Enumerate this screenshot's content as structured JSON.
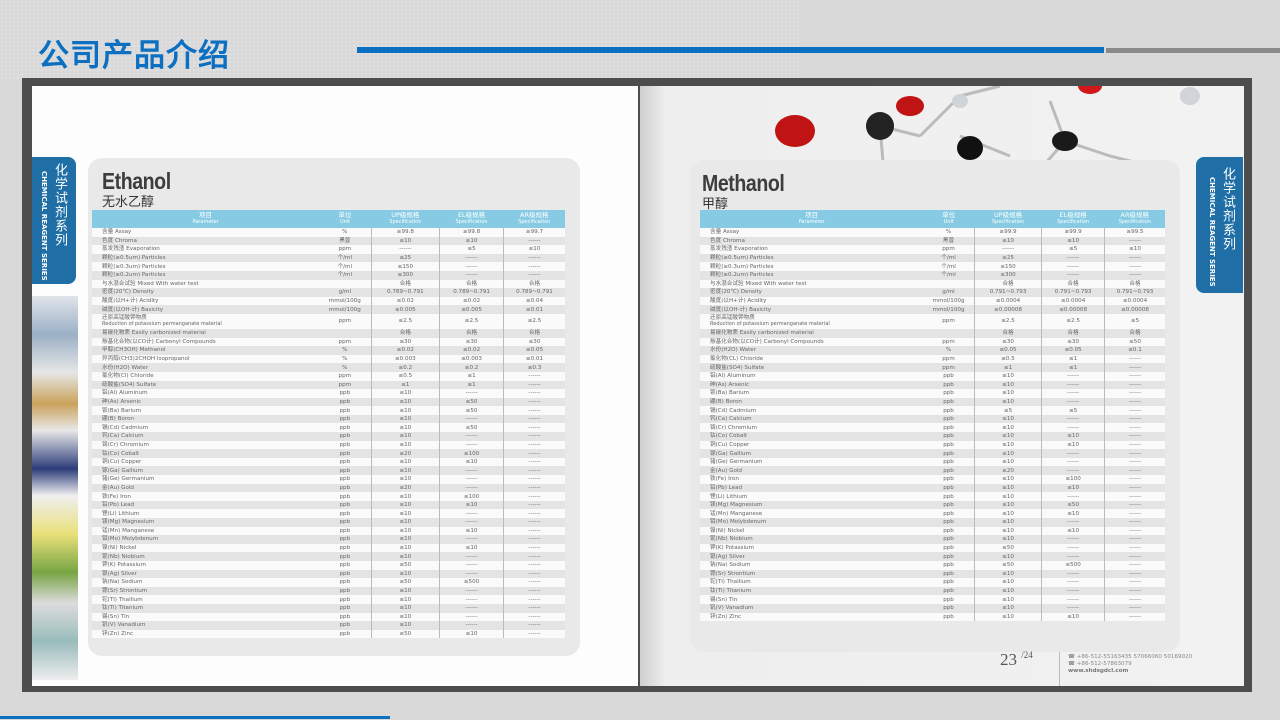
{
  "slide": {
    "title": "公司产品介绍"
  },
  "side_tab": {
    "cn": "化学试剂系列",
    "en": "CHEMICAL REAGENT SERIES"
  },
  "headers": {
    "param_cn": "项目",
    "param_en": "Parameter",
    "unit_cn": "单位",
    "unit_en": "Unit",
    "up_cn": "UP级规格",
    "el_cn": "EL级规格",
    "ar_cn": "AR级规格",
    "spec_en": "Specification"
  },
  "ethanol": {
    "name": "Ethanol",
    "name_cn": "无水乙醇",
    "rows": [
      [
        "含量 Assay",
        "",
        "%",
        "≥99.8",
        "≥99.8",
        "≥99.7"
      ],
      [
        "色度 Chroma",
        "",
        "黑曾",
        "≤10",
        "≤10",
        "------"
      ],
      [
        "蒸发残渣 Evaporation",
        "",
        "ppm",
        "------",
        "≤5",
        "≤10"
      ],
      [
        "颗粒(≥0.5um) Particles",
        "",
        "个/ml",
        "≤25",
        "------",
        "------"
      ],
      [
        "颗粒(≥0.3um) Particles",
        "",
        "个/ml",
        "≤150",
        "------",
        "------"
      ],
      [
        "颗粒(≥0.2um) Particles",
        "",
        "个/ml",
        "≤300",
        "------",
        "------"
      ],
      [
        "与水混合试验 Mixed With water test",
        "",
        "",
        "合格",
        "合格",
        "合格"
      ],
      [
        "密度(20℃)    Density",
        "",
        "g/ml",
        "0.789~0.791",
        "0.789~0.791",
        "0.789~0.791"
      ],
      [
        "酸度(以H+计)   Acidity",
        "",
        "mmol/100g",
        "≤0.02",
        "≤0.02",
        "≤0.04"
      ],
      [
        "碱度(以OH-计) Basicity",
        "",
        "mmol/100g",
        "≤0.005",
        "≤0.005",
        "≤0.01"
      ],
      [
        "还原高锰酸钾物质",
        "Reduction of potassium permanganate material",
        "ppm",
        "≤2.5",
        "≤2.5",
        "≤2.5"
      ],
      [
        "易碳化物质 Easily carbonized material",
        "",
        "",
        "合格",
        "合格",
        "合格"
      ],
      [
        "羰基化合物(以CO计) Carbonyl Compounds",
        "",
        "ppm",
        "≤30",
        "≤30",
        "≤30"
      ],
      [
        "甲醇(CH3OH)    Methanol",
        "",
        "%",
        "≤0.02",
        "≤0.02",
        "≤0.05"
      ],
      [
        "异丙醇(CH3)2CHOH Isopropanol",
        "",
        "%",
        "≤0.003",
        "≤0.003",
        "≤0.01"
      ],
      [
        "水份(H2O)      Water",
        "",
        "%",
        "≤0.2",
        "≤0.2",
        "≤0.3"
      ],
      [
        "氯化物(Cl)     Chloride",
        "",
        "ppm",
        "≤0.5",
        "≤1",
        "------"
      ],
      [
        "硫酸盐(SO4)    Sulfate",
        "",
        "ppm",
        "≤1",
        "≤1",
        "------"
      ],
      [
        "铝(Al)    Aluminum",
        "",
        "ppb",
        "≤10",
        "------",
        "------"
      ],
      [
        "砷(As)    Arsenic",
        "",
        "ppb",
        "≤10",
        "≤50",
        "------"
      ],
      [
        "钡(Ba)    Barium",
        "",
        "ppb",
        "≤10",
        "≤50",
        "------"
      ],
      [
        "硼(B)     Boron",
        "",
        "ppb",
        "≤10",
        "------",
        "------"
      ],
      [
        "镉(Cd)    Cadmium",
        "",
        "ppb",
        "≤10",
        "≤50",
        "------"
      ],
      [
        "钙(Ca)    Calcium",
        "",
        "ppb",
        "≤10",
        "------",
        "------"
      ],
      [
        "铬(Cr)    Chromium",
        "",
        "ppb",
        "≤10",
        "------",
        "------"
      ],
      [
        "钴(Co)    Cobalt",
        "",
        "ppb",
        "≤20",
        "≤100",
        "------"
      ],
      [
        "铜(Cu)    Copper",
        "",
        "ppb",
        "≤10",
        "≤10",
        "------"
      ],
      [
        "镓(Ga)    Gallium",
        "",
        "ppb",
        "≤10",
        "------",
        "------"
      ],
      [
        "锗(Ge)    Germanium",
        "",
        "ppb",
        "≤10",
        "------",
        "------"
      ],
      [
        "金(Au)    Gold",
        "",
        "ppb",
        "≤20",
        "------",
        "------"
      ],
      [
        "铁(Fe)    Iron",
        "",
        "ppb",
        "≤10",
        "≤100",
        "------"
      ],
      [
        "铅(Pb)    Lead",
        "",
        "ppb",
        "≤10",
        "≤10",
        "------"
      ],
      [
        "锂(Li)    Lithium",
        "",
        "ppb",
        "≤10",
        "------",
        "------"
      ],
      [
        "镁(Mg)    Magnesium",
        "",
        "ppb",
        "≤10",
        "------",
        "------"
      ],
      [
        "锰(Mn)    Manganese",
        "",
        "ppb",
        "≤10",
        "≤10",
        "------"
      ],
      [
        "钼(Mo)    Molybdenum",
        "",
        "ppb",
        "≤10",
        "------",
        "------"
      ],
      [
        "镍(Ni)    Nickel",
        "",
        "ppb",
        "≤10",
        "≤10",
        "------"
      ],
      [
        "铌(Nb)    Niobium",
        "",
        "ppb",
        "≤10",
        "------",
        "------"
      ],
      [
        "钾(K)     Potassium",
        "",
        "ppb",
        "≤50",
        "------",
        "------"
      ],
      [
        "银(Ag)    Silver",
        "",
        "ppb",
        "≤10",
        "------",
        "------"
      ],
      [
        "钠(Na)    Sodium",
        "",
        "ppb",
        "≤50",
        "≤500",
        "------"
      ],
      [
        "锶(Sr)    Strontium",
        "",
        "ppb",
        "≤10",
        "------",
        "------"
      ],
      [
        "铊(Tl)    Thallium",
        "",
        "ppb",
        "≤10",
        "------",
        "------"
      ],
      [
        "钛(Ti)    Titanium",
        "",
        "ppb",
        "≤10",
        "------",
        "------"
      ],
      [
        "锡(Sn)    Tin",
        "",
        "ppb",
        "≤10",
        "------",
        "------"
      ],
      [
        "钒(V)     Vanadium",
        "",
        "ppb",
        "≤10",
        "------",
        "------"
      ],
      [
        "锌(Zn)    Zinc",
        "",
        "ppb",
        "≤50",
        "≤10",
        "------"
      ]
    ]
  },
  "methanol": {
    "name": "Methanol",
    "name_cn": "甲醇",
    "rows": [
      [
        "含量 Assay",
        "",
        "%",
        "≥99.9",
        "≥99.9",
        "≥99.5"
      ],
      [
        "色度 Chroma",
        "",
        "黑曾",
        "≤10",
        "≤10",
        "------"
      ],
      [
        "蒸发残渣 Evaporation",
        "",
        "ppm",
        "------",
        "≤5",
        "≤10"
      ],
      [
        "颗粒(≥0.5um) Particles",
        "",
        "个/ml",
        "≤25",
        "------",
        "------"
      ],
      [
        "颗粒(≥0.3um) Particles",
        "",
        "个/ml",
        "≤150",
        "------",
        "------"
      ],
      [
        "颗粒(≥0.2um) Particles",
        "",
        "个/ml",
        "≤300",
        "------",
        "------"
      ],
      [
        "与水混合试验 Mixed With water test",
        "",
        "",
        "合格",
        "合格",
        "合格"
      ],
      [
        "密度(20℃)    Density",
        "",
        "g/ml",
        "0.791~0.793",
        "0.791~0.793",
        "0.791~0.793"
      ],
      [
        "酸度(以H+计)   Acidity",
        "",
        "mmol/100g",
        "≤0.0004",
        "≤0.0004",
        "≤0.0004"
      ],
      [
        "碱度(以OH-计) Basicity",
        "",
        "mmol/100g",
        "≤0.00008",
        "≤0.00008",
        "≤0.00008"
      ],
      [
        "还原高锰酸钾物质",
        "Reduction of potassium permanganate material",
        "ppm",
        "≤2.5",
        "≤2.5",
        "≤5"
      ],
      [
        "易碳化物质 Easily carbonized material",
        "",
        "",
        "合格",
        "合格",
        "合格"
      ],
      [
        "羰基化合物(以CO计) Carbonyl Compounds",
        "",
        "ppm",
        "≤30",
        "≤30",
        "≤50"
      ],
      [
        "水份(H2O)      Water",
        "",
        "%",
        "≤0.05",
        "≤0.05",
        "≤0.1"
      ],
      [
        "氯化物(CL)     Chloride",
        "",
        "ppm",
        "≤0.5",
        "≤1",
        "------"
      ],
      [
        "硫酸盐(SO4)    Sulfate",
        "",
        "ppm",
        "≤1",
        "≤1",
        "------"
      ],
      [
        "铝(Al)    Aluminum",
        "",
        "ppb",
        "≤10",
        "------",
        "------"
      ],
      [
        "砷(As)    Arsenic",
        "",
        "ppb",
        "≤10",
        "------",
        "------"
      ],
      [
        "钡(Ba)    Barium",
        "",
        "ppb",
        "≤10",
        "------",
        "------"
      ],
      [
        "硼(B)     Boron",
        "",
        "ppb",
        "≤10",
        "------",
        "------"
      ],
      [
        "镉(Cd)    Cadmium",
        "",
        "ppb",
        "≤5",
        "≤5",
        "------"
      ],
      [
        "钙(Ca)    Calcium",
        "",
        "ppb",
        "≤10",
        "------",
        "------"
      ],
      [
        "铬(Cr)    Chromium",
        "",
        "ppb",
        "≤10",
        "------",
        "------"
      ],
      [
        "钴(Co)    Cobalt",
        "",
        "ppb",
        "≤10",
        "≤10",
        "------"
      ],
      [
        "铜(Cu)    Copper",
        "",
        "ppb",
        "≤10",
        "≤10",
        "------"
      ],
      [
        "镓(Ga)    Gallium",
        "",
        "ppb",
        "≤10",
        "------",
        "------"
      ],
      [
        "锗(Ge)    Germanium",
        "",
        "ppb",
        "≤10",
        "------",
        "------"
      ],
      [
        "金(Au)    Gold",
        "",
        "ppb",
        "≤20",
        "------",
        "------"
      ],
      [
        "铁(Fe)    Iron",
        "",
        "ppb",
        "≤10",
        "≤100",
        "------"
      ],
      [
        "铅(Pb)    Lead",
        "",
        "ppb",
        "≤10",
        "≤10",
        "------"
      ],
      [
        "锂(Li)    Lithium",
        "",
        "ppb",
        "≤10",
        "------",
        "------"
      ],
      [
        "镁(Mg)    Magnesium",
        "",
        "ppb",
        "≤10",
        "≤50",
        "------"
      ],
      [
        "锰(Mn)    Manganese",
        "",
        "ppb",
        "≤10",
        "≤10",
        "------"
      ],
      [
        "钼(Mo)    Molybdenum",
        "",
        "ppb",
        "≤10",
        "------",
        "------"
      ],
      [
        "镍(Ni)    Nickel",
        "",
        "ppb",
        "≤10",
        "≤10",
        "------"
      ],
      [
        "铌(Nb)    Niobium",
        "",
        "ppb",
        "≤10",
        "------",
        "------"
      ],
      [
        "钾(K)     Potassium",
        "",
        "ppb",
        "≤50",
        "------",
        "------"
      ],
      [
        "银(Ag)    Silver",
        "",
        "ppb",
        "≤10",
        "------",
        "------"
      ],
      [
        "钠(Na)    Sodium",
        "",
        "ppb",
        "≤50",
        "≤500",
        "------"
      ],
      [
        "锶(Sr)    Strontium",
        "",
        "ppb",
        "≤10",
        "------",
        "------"
      ],
      [
        "铊(Tl)    Thallium",
        "",
        "ppb",
        "≤10",
        "------",
        "------"
      ],
      [
        "钛(Ti)    Titanium",
        "",
        "ppb",
        "≤10",
        "------",
        "------"
      ],
      [
        "锡(Sn)    Tin",
        "",
        "ppb",
        "≤10",
        "------",
        "------"
      ],
      [
        "钒(V)     Vanadium",
        "",
        "ppb",
        "≤10",
        "------",
        "------"
      ],
      [
        "锌(Zn)    Zinc",
        "",
        "ppb",
        "≤10",
        "≤10",
        "------"
      ]
    ]
  },
  "footer": {
    "page": "23",
    "total": "/24",
    "phone1": "☎ +86-512-55163435  57066060  50169020",
    "phone2": "☎ +86-512-57863079",
    "website": "www.shdsgdcl.com"
  },
  "colors": {
    "accent": "#0b6fc2",
    "table_header": "#86cbe3",
    "tab": "#1f6ea6"
  }
}
